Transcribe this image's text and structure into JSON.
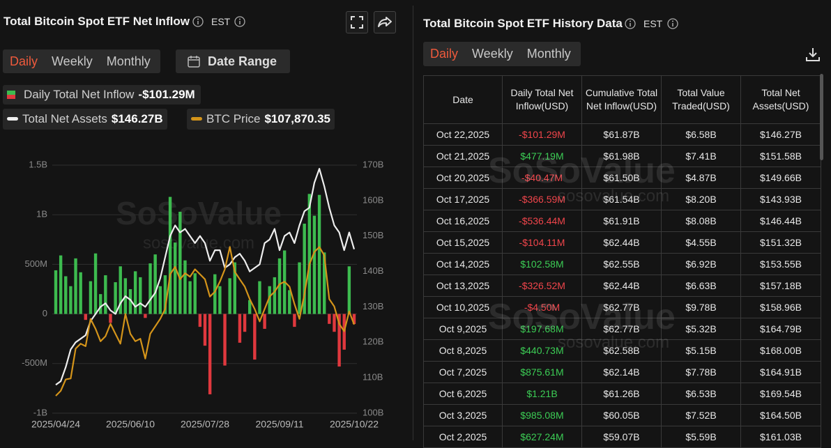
{
  "left_panel": {
    "title": "Total Bitcoin Spot ETF Net Inflow",
    "timezone": "EST",
    "tabs": [
      "Daily",
      "Weekly",
      "Monthly"
    ],
    "date_range": "Date Range",
    "summary_values": [
      "-$101.29M",
      "$146.27B",
      "$107,870.35"
    ],
    "watermark": {
      "brand": "SoSoValue",
      "url": "sosovalue.com"
    }
  },
  "chart_data": {
    "type": "bar",
    "categories": [
      "2025/04/24",
      null,
      null,
      null,
      null,
      null,
      null,
      null,
      null,
      null,
      null,
      null,
      null,
      null,
      null,
      "2025/06/10",
      null,
      null,
      null,
      null,
      null,
      null,
      null,
      null,
      null,
      null,
      null,
      null,
      null,
      null,
      "2025/07/28",
      null,
      null,
      null,
      null,
      null,
      null,
      null,
      null,
      null,
      null,
      null,
      null,
      null,
      null,
      "2025/09/11",
      null,
      null,
      null,
      null,
      null,
      null,
      null,
      null,
      null,
      null,
      null,
      null,
      null,
      null,
      "2025/10/22"
    ],
    "series": [
      {
        "name": "Daily Total Net Inflow",
        "type": "bar",
        "color": "#3dbb4f",
        "negative_color": "#e0383e",
        "values": [
          440,
          590,
          380,
          280,
          560,
          420,
          -60,
          330,
          610,
          200,
          390,
          -90,
          320,
          480,
          360,
          250,
          430,
          370,
          -40,
          510,
          600,
          280,
          390,
          1180,
          720,
          1030,
          540,
          330,
          410,
          -130,
          -320,
          -810,
          400,
          280,
          -520,
          360,
          520,
          -290,
          -180,
          140,
          -460,
          330,
          -150,
          280,
          370,
          560,
          640,
          240,
          -130,
          520,
          910,
          1210,
          990,
          1200,
          620,
          -100,
          -180,
          -530,
          -360,
          480,
          -101.29
        ]
      },
      {
        "name": "Total Net Assets",
        "type": "line",
        "axis": "y2",
        "color": "#eeeeee",
        "values": [
          108,
          109,
          113,
          118,
          120,
          121,
          122,
          126,
          128,
          130,
          131,
          129,
          128,
          131,
          133,
          132,
          130,
          131,
          130,
          132,
          134,
          138,
          144,
          150,
          153,
          151,
          152,
          150,
          148,
          150,
          148,
          143,
          146,
          146,
          141,
          142,
          144,
          145,
          143,
          140,
          141,
          142,
          148,
          149,
          152,
          146,
          150,
          151,
          148,
          153,
          157,
          158,
          165,
          169,
          164,
          158,
          153,
          151,
          146,
          151,
          146.27
        ]
      },
      {
        "name": "BTC Price",
        "type": "line",
        "axis": "y3",
        "color": "#d4941a",
        "values": [
          93500,
          94500,
          96800,
          97000,
          103000,
          104000,
          103500,
          109000,
          107000,
          104500,
          105500,
          108000,
          106000,
          104000,
          110000,
          106000,
          104500,
          105000,
          101000,
          106000,
          107500,
          109000,
          111000,
          118000,
          119500,
          117000,
          118200,
          117500,
          119000,
          118000,
          117000,
          113500,
          114500,
          116500,
          119000,
          123500,
          118500,
          117000,
          115500,
          113000,
          111000,
          108500,
          111000,
          113500,
          114500,
          116000,
          116500,
          115500,
          112000,
          109000,
          114000,
          120000,
          122500,
          123500,
          121800,
          113000,
          111500,
          108000,
          106500,
          110500,
          107870.35
        ]
      }
    ],
    "ylim": [
      -1000,
      1500
    ],
    "yticks": [
      {
        "value": -1000,
        "label": "-1B"
      },
      {
        "value": -500,
        "label": "-500M"
      },
      0,
      {
        "value": 500,
        "label": "500M"
      },
      {
        "value": 1000,
        "label": "1B"
      },
      {
        "value": 1500,
        "label": "1.5B"
      }
    ],
    "y2lim": [
      100,
      170
    ],
    "y2ticks": [
      {
        "value": 100,
        "label": "100B"
      },
      {
        "value": 110,
        "label": "110B"
      },
      {
        "value": 120,
        "label": "120B"
      },
      {
        "value": 130,
        "label": "130B"
      },
      {
        "value": 140,
        "label": "140B"
      },
      {
        "value": 150,
        "label": "150B"
      },
      {
        "value": 160,
        "label": "160B"
      },
      {
        "value": 170,
        "label": "170B"
      }
    ],
    "y3lim": [
      90000,
      140000
    ],
    "grid": true
  },
  "right_panel": {
    "title": "Total Bitcoin Spot ETF History Data",
    "timezone": "EST",
    "tabs": [
      "Daily",
      "Weekly",
      "Monthly"
    ],
    "table": {
      "columns": [
        "Date",
        "Daily Total Net Inflow(USD)",
        "Cumulative Total Net Inflow(USD)",
        "Total Value Traded(USD)",
        "Total Net Assets(USD)"
      ],
      "rows": [
        [
          "Oct 22,2025",
          "-$101.29M",
          "$61.87B",
          "$6.58B",
          "$146.27B"
        ],
        [
          "Oct 21,2025",
          "$477.19M",
          "$61.98B",
          "$7.41B",
          "$151.58B"
        ],
        [
          "Oct 20,2025",
          "-$40.47M",
          "$61.50B",
          "$4.87B",
          "$149.66B"
        ],
        [
          "Oct 17,2025",
          "-$366.59M",
          "$61.54B",
          "$8.20B",
          "$143.93B"
        ],
        [
          "Oct 16,2025",
          "-$536.44M",
          "$61.91B",
          "$8.08B",
          "$146.44B"
        ],
        [
          "Oct 15,2025",
          "-$104.11M",
          "$62.44B",
          "$4.55B",
          "$151.32B"
        ],
        [
          "Oct 14,2025",
          "$102.58M",
          "$62.55B",
          "$6.92B",
          "$153.55B"
        ],
        [
          "Oct 13,2025",
          "-$326.52M",
          "$62.44B",
          "$6.63B",
          "$157.18B"
        ],
        [
          "Oct 10,2025",
          "-$4.50M",
          "$62.77B",
          "$9.78B",
          "$158.96B"
        ],
        [
          "Oct 9,2025",
          "$197.68M",
          "$62.77B",
          "$5.32B",
          "$164.79B"
        ],
        [
          "Oct 8,2025",
          "$440.73M",
          "$62.58B",
          "$5.15B",
          "$168.00B"
        ],
        [
          "Oct 7,2025",
          "$875.61M",
          "$62.14B",
          "$7.78B",
          "$164.91B"
        ],
        [
          "Oct 6,2025",
          "$1.21B",
          "$61.26B",
          "$6.53B",
          "$169.54B"
        ],
        [
          "Oct 3,2025",
          "$985.08M",
          "$60.05B",
          "$7.52B",
          "$164.50B"
        ],
        [
          "Oct 2,2025",
          "$627.24M",
          "$59.07B",
          "$5.59B",
          "$161.03B"
        ]
      ]
    },
    "watermark": {
      "brand": "SoSoValue",
      "url": "sosovalue.com"
    }
  }
}
